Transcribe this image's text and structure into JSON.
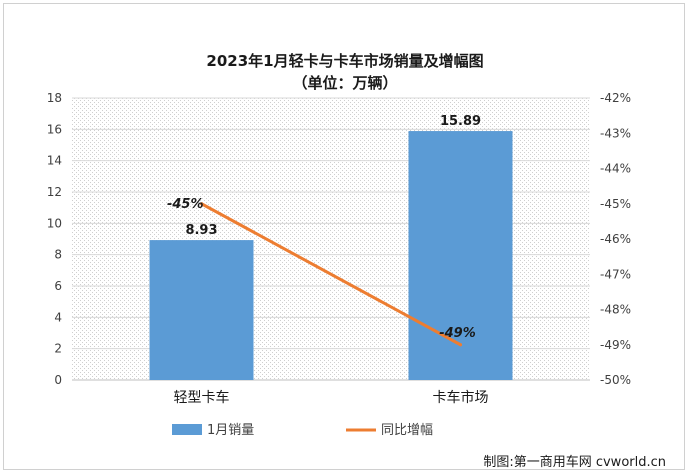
{
  "chart_data": {
    "type": "bar",
    "title": "2023年1月轻卡与卡车市场销量及增幅图",
    "subtitle": "（单位：万辆）",
    "categories": [
      "轻型卡车",
      "卡车市场"
    ],
    "series": [
      {
        "name": "1月销量",
        "type": "bar",
        "axis": "left",
        "values": [
          8.93,
          15.89
        ],
        "labels": [
          "8.93",
          "15.89"
        ],
        "color": "#5b9bd5"
      },
      {
        "name": "同比增幅",
        "type": "line",
        "axis": "right",
        "values": [
          -45,
          -49
        ],
        "labels": [
          "-45%",
          "-49%"
        ],
        "color": "#ed7d31"
      }
    ],
    "y_left": {
      "min": 0,
      "max": 18,
      "ticks": [
        "0",
        "2",
        "4",
        "6",
        "8",
        "10",
        "12",
        "14",
        "16",
        "18"
      ]
    },
    "y_right": {
      "min": -50,
      "max": -42,
      "ticks": [
        "-50%",
        "-49%",
        "-48%",
        "-47%",
        "-46%",
        "-45%",
        "-44%",
        "-43%",
        "-42%"
      ]
    },
    "grid": true,
    "legend": "bottom"
  },
  "footer": {
    "source": "制图:第一商用车网 cvworld.cn"
  }
}
